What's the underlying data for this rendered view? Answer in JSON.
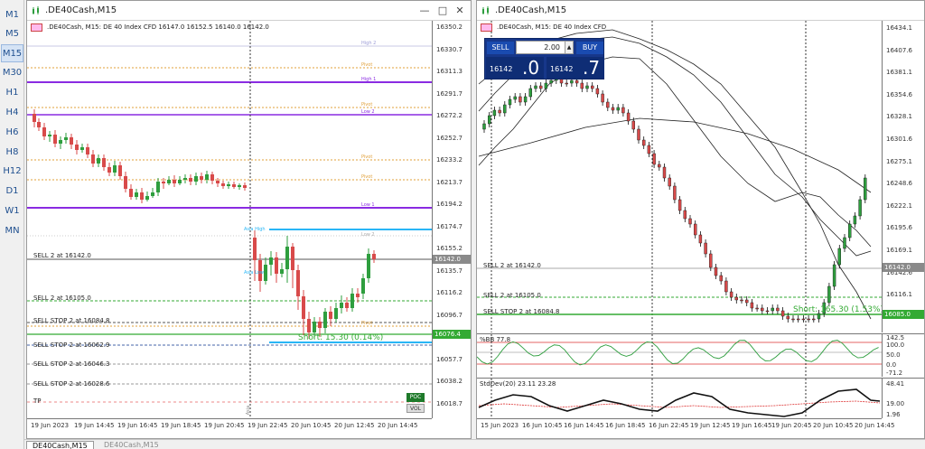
{
  "timeframes": [
    {
      "label": "M1",
      "active": false
    },
    {
      "label": "M5",
      "active": false
    },
    {
      "label": "M15",
      "active": true
    },
    {
      "label": "M30",
      "active": false
    },
    {
      "label": "H1",
      "active": false
    },
    {
      "label": "H4",
      "active": false
    },
    {
      "label": "H6",
      "active": false
    },
    {
      "label": "H8",
      "active": false
    },
    {
      "label": "H12",
      "active": false
    },
    {
      "label": "D1",
      "active": false
    },
    {
      "label": "W1",
      "active": false
    },
    {
      "label": "MN",
      "active": false
    }
  ],
  "colors": {
    "bull": "#2e9e3e",
    "bear": "#d84a4a",
    "purple": "#8a2be2",
    "orange": "#e0a03a",
    "cyan": "#29b6f6",
    "green_level": "#33aa33",
    "price_box": "#8a8a8a",
    "panel_blue": "#17378a"
  },
  "left_window": {
    "title": ".DE40Cash,M15",
    "info": ".DE40Cash, M15:  DE 40 Index CFD   16147.0 16152.5 16140.0 16142.0",
    "y_axis": [
      "16350.2",
      "16330.7",
      "16311.3",
      "16291.7",
      "16272.2",
      "16252.7",
      "16233.2",
      "16213.7",
      "16194.2",
      "16174.7",
      "16155.2",
      "16135.7",
      "16116.2",
      "16096.7",
      "16077.2",
      "16057.7",
      "16038.2",
      "16018.7"
    ],
    "x_axis": [
      "19 Jun 2023",
      "19 Jun 14:45",
      "19 Jun 16:45",
      "19 Jun 18:45",
      "19 Jun 20:45",
      "19 Jun 22:45",
      "20 Jun 10:45",
      "20 Jun 12:45",
      "20 Jun 14:45"
    ],
    "current_price": "16142.0",
    "green_price": "16076.4",
    "short_text": "Short: 15.30  (0.14%)",
    "orders": [
      {
        "label": "SELL 2 at 16142.0"
      },
      {
        "label": "SELL 2 at 16105.0"
      },
      {
        "label": "SELL STOP 2 at 16084.8"
      },
      {
        "label": "SELL STOP 2 at 16062.9"
      },
      {
        "label": "SELL STOP 2 at 16046.3"
      },
      {
        "label": "SELL STOP 2 at 16028.6"
      },
      {
        "label": "TP"
      }
    ],
    "level_tags": [
      "High 2",
      "Pivot",
      "High 1",
      "Pivot",
      "Low 2",
      "Pivot",
      "Pivot",
      "Low 1",
      "Asia High",
      "Asia Low",
      "Low 2",
      "Pivot"
    ],
    "poc_label": "POC",
    "vol_label": "VOL",
    "vline_label": "Asia"
  },
  "right_window": {
    "title": ".DE40Cash,M15",
    "info": ".DE40Cash, M15:  DE 40 Index CFD",
    "oct": {
      "sell_label": "SELL",
      "buy_label": "BUY",
      "volume": "2.00",
      "bid_small": "16142",
      "bid_big": ".0",
      "ask_small": "16142",
      "ask_big": ".7"
    },
    "y_axis": [
      "16434.1",
      "16407.6",
      "16381.1",
      "16354.6",
      "16328.1",
      "16301.6",
      "16275.1",
      "16248.6",
      "16222.1",
      "16195.6",
      "16169.1",
      "16142.6",
      "16116.1",
      "16089.6"
    ],
    "current_price": "16142.0",
    "green_price": "16085.0",
    "short_text": "Short: 165.30 (1.53%)",
    "orders": [
      {
        "label": "SELL 2 at 16142.0"
      },
      {
        "label": "SELL 2 at 16105.0"
      },
      {
        "label": "SELL STOP 2 at 16084.8"
      }
    ],
    "bb_panel": {
      "label": "%BB 77.8",
      "levels": [
        "142.5",
        "100.0",
        "50.0",
        "0.0",
        "-71.2"
      ]
    },
    "std_panel": {
      "label": "StdDev(20) 23.11 23.28",
      "levels": [
        "48.41",
        "19.00",
        "1.96"
      ]
    },
    "x_axis": [
      "15 Jun 2023",
      "16 Jun 10:45",
      "16 Jun 14:45",
      "16 Jun 18:45",
      "16 Jun 22:45",
      "19 Jun 12:45",
      "19 Jun 16:45",
      "19 Jun 20:45",
      "20 Jun 10:45",
      "20 Jun 14:45"
    ]
  },
  "tabs": [
    {
      "label": "DE40Cash,M15",
      "active": true
    },
    {
      "label": "DE40Cash,M15",
      "active": false
    }
  ]
}
